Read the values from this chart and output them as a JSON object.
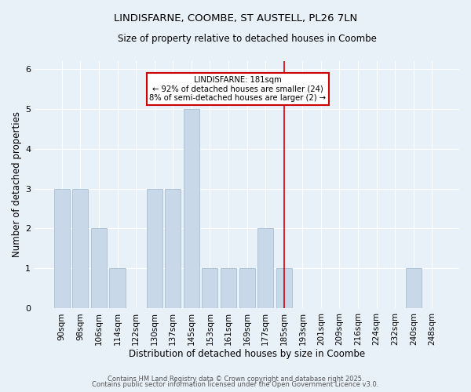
{
  "title_line1": "LINDISFARNE, COOMBE, ST AUSTELL, PL26 7LN",
  "title_line2": "Size of property relative to detached houses in Coombe",
  "xlabel": "Distribution of detached houses by size in Coombe",
  "ylabel": "Number of detached properties",
  "categories": [
    "90sqm",
    "98sqm",
    "106sqm",
    "114sqm",
    "122sqm",
    "130sqm",
    "137sqm",
    "145sqm",
    "153sqm",
    "161sqm",
    "169sqm",
    "177sqm",
    "185sqm",
    "193sqm",
    "201sqm",
    "209sqm",
    "216sqm",
    "224sqm",
    "232sqm",
    "240sqm",
    "248sqm"
  ],
  "values": [
    3,
    3,
    2,
    1,
    0,
    3,
    3,
    5,
    1,
    1,
    1,
    2,
    1,
    0,
    0,
    0,
    0,
    0,
    0,
    1,
    0
  ],
  "bar_color": "#c8d8e8",
  "bar_edgecolor": "#a8bfd0",
  "bar_width": 0.85,
  "ylim": [
    0,
    6.2
  ],
  "yticks": [
    0,
    1,
    2,
    3,
    4,
    5,
    6
  ],
  "property_line_x": 12.0,
  "annotation_label": "LINDISFARNE: 181sqm",
  "annotation_line1": "← 92% of detached houses are smaller (24)",
  "annotation_line2": "8% of semi-detached houses are larger (2) →",
  "annotation_box_facecolor": "#ffffff",
  "annotation_box_edgecolor": "#cc0000",
  "line_color": "#cc0000",
  "background_color": "#e8f0f8",
  "grid_color": "#ffffff",
  "title_fontsize": 9.5,
  "subtitle_fontsize": 8.5,
  "xlabel_fontsize": 8.5,
  "ylabel_fontsize": 8.5,
  "tick_fontsize": 7.5,
  "footer_line1": "Contains HM Land Registry data © Crown copyright and database right 2025.",
  "footer_line2": "Contains public sector information licensed under the Open Government Licence v3.0.",
  "footer_fontsize": 6.0
}
